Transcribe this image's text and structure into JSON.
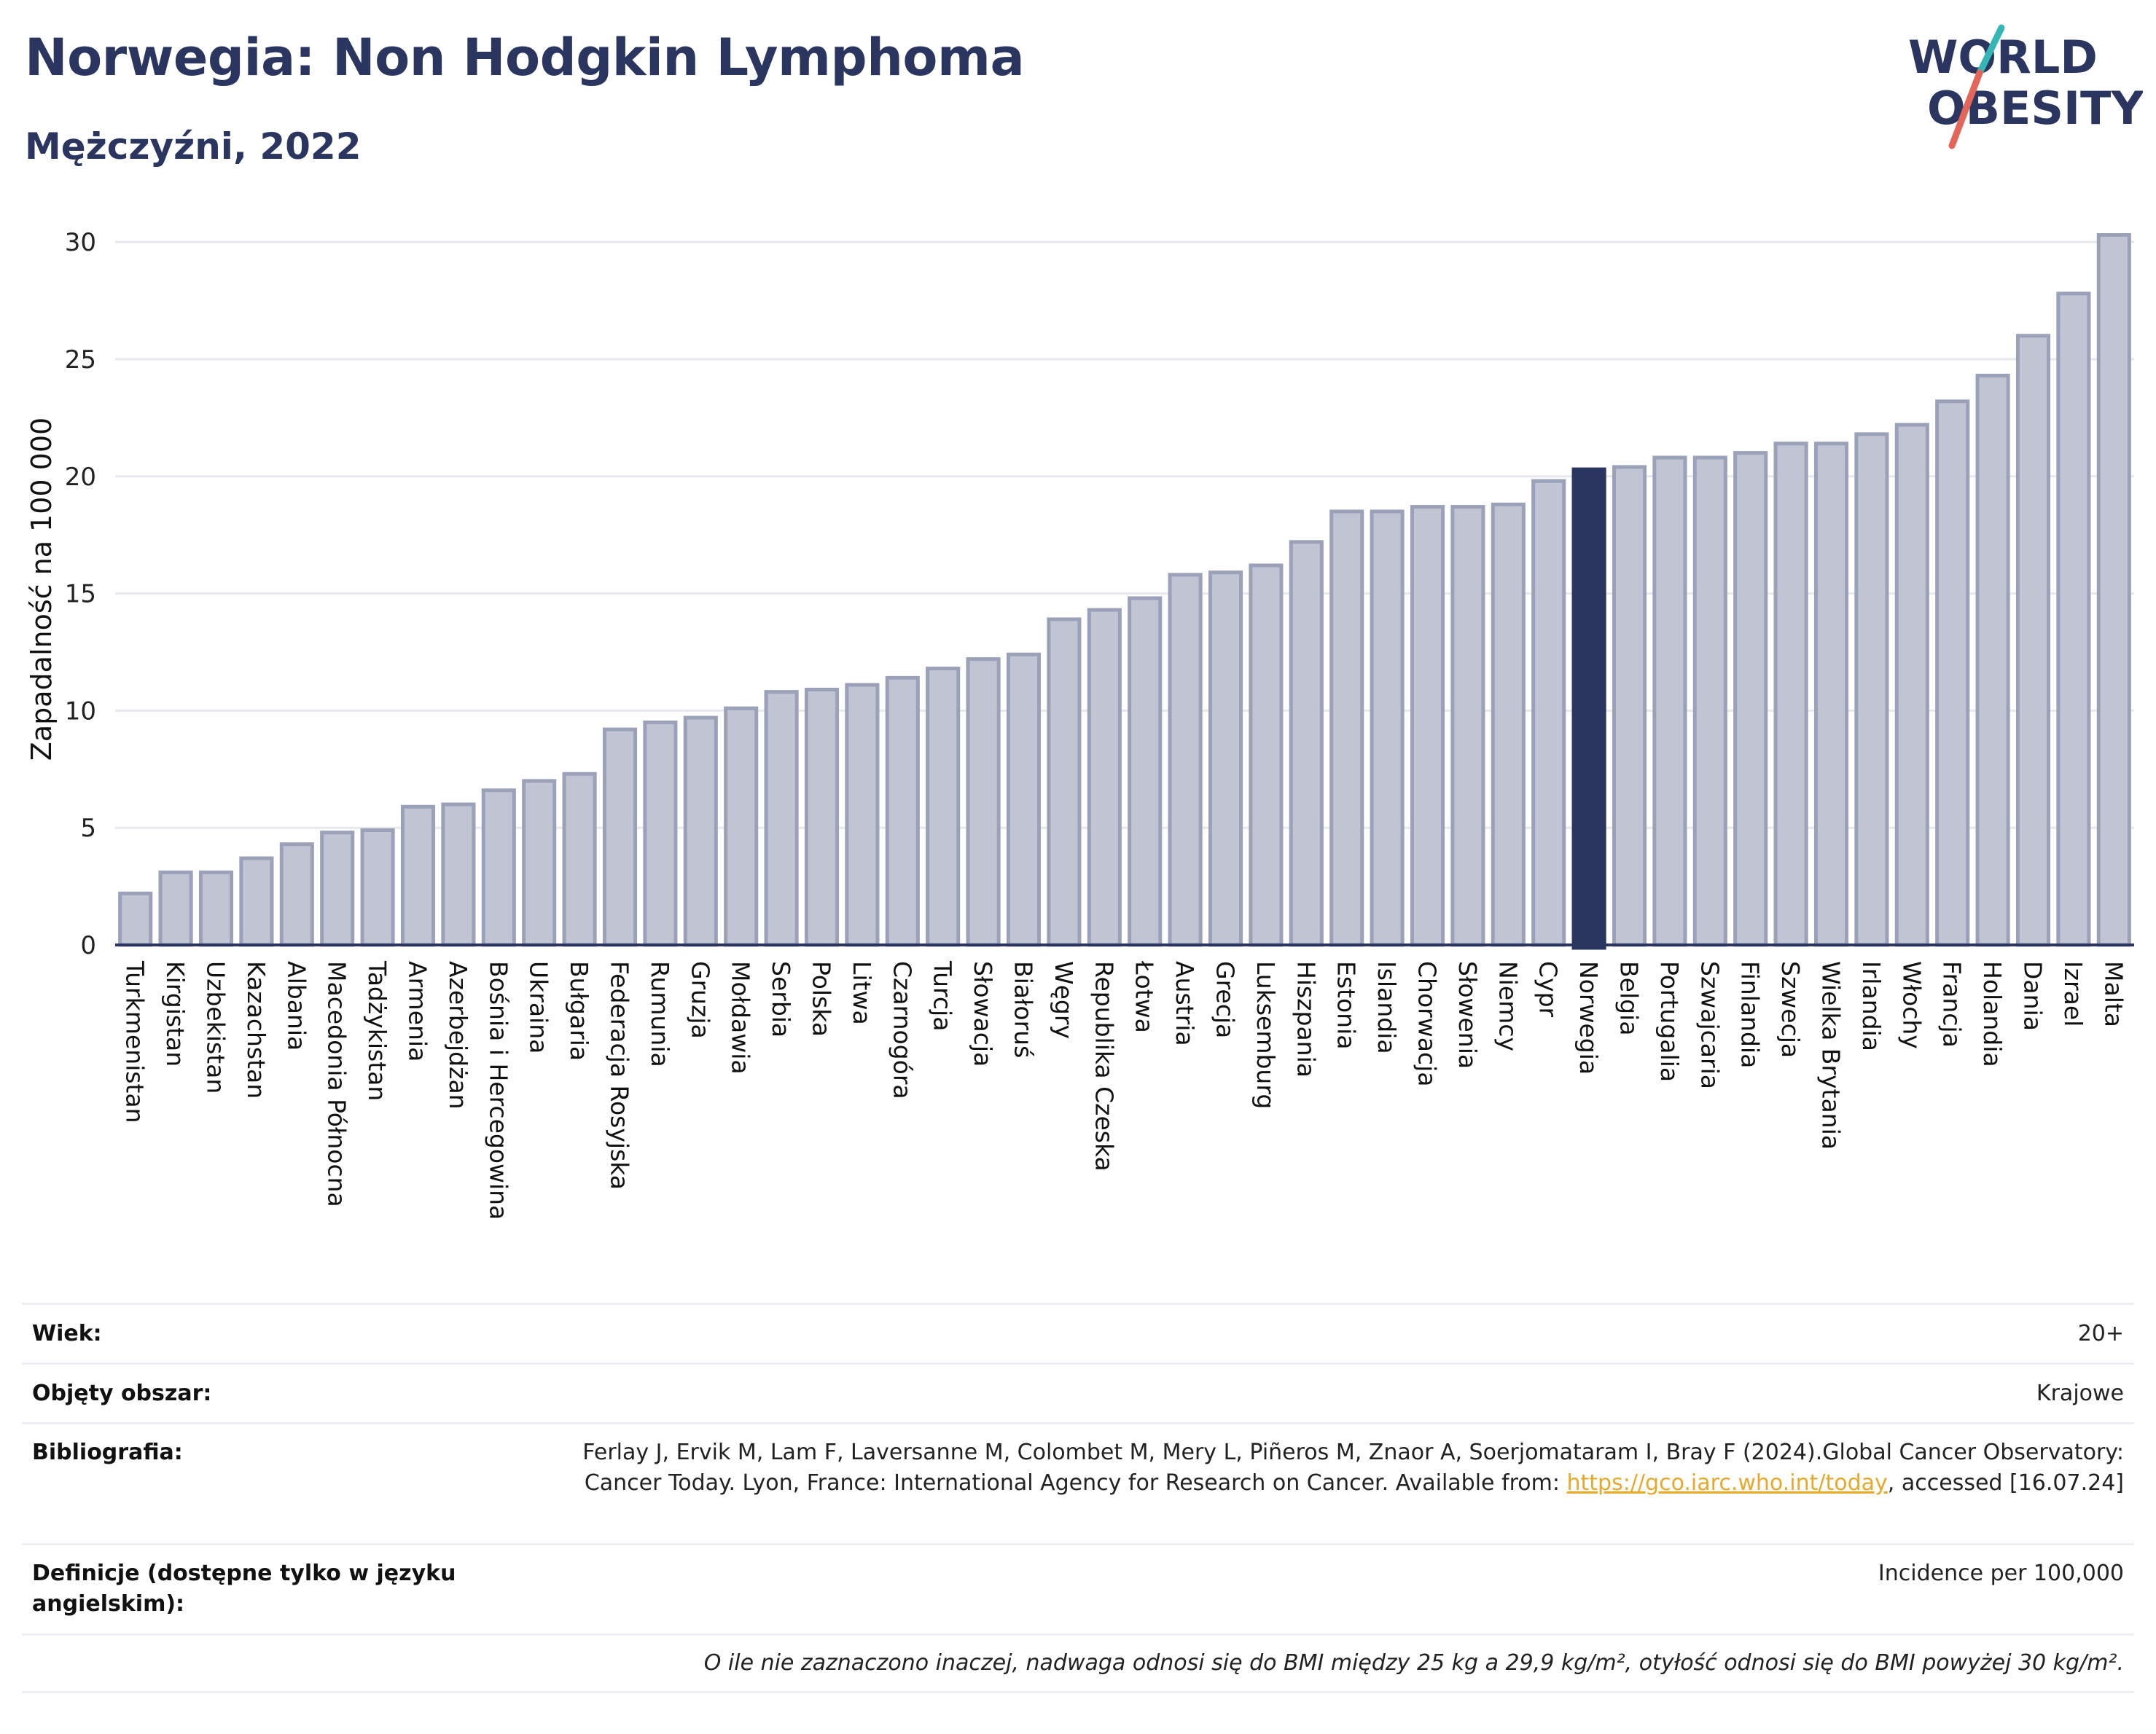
{
  "header": {
    "title": "Norwegia: Non Hodgkin Lymphoma",
    "subtitle": "Mężczyźni, 2022",
    "logo_line1": "WORLD",
    "logo_line2": "OBESITY"
  },
  "colors": {
    "bar": "#c0c4d3",
    "bar_border": "#9aa1b8",
    "highlight": "#2a3560",
    "title": "#2a3560",
    "grid": "#e6e8ee"
  },
  "chart_data": {
    "type": "bar",
    "title": "Norwegia: Non Hodgkin Lymphoma",
    "subtitle": "Mężczyźni, 2022",
    "ylabel": "Zapadalność na 100 000",
    "xlabel": "",
    "ylim": [
      0,
      31
    ],
    "yticks": [
      0,
      5,
      10,
      15,
      20,
      25,
      30
    ],
    "grid": true,
    "highlight": "Norwegia",
    "categories": [
      "Turkmenistan",
      "Kirgistan",
      "Uzbekistan",
      "Kazachstan",
      "Albania",
      "Macedonia Północna",
      "Tadżykistan",
      "Armenia",
      "Azerbejdżan",
      "Bośnia i Hercegowina",
      "Ukraina",
      "Bułgaria",
      "Federacja Rosyjska",
      "Rumunia",
      "Gruzja",
      "Mołdawia",
      "Serbia",
      "Polska",
      "Litwa",
      "Czarnogóra",
      "Turcja",
      "Słowacja",
      "Białoruś",
      "Węgry",
      "Republika Czeska",
      "Łotwa",
      "Austria",
      "Grecja",
      "Luksemburg",
      "Hiszpania",
      "Estonia",
      "Islandia",
      "Chorwacja",
      "Słowenia",
      "Niemcy",
      "Cypr",
      "Norwegia",
      "Belgia",
      "Portugalia",
      "Szwajcaria",
      "Finlandia",
      "Szwecja",
      "Wielka Brytania",
      "Irlandia",
      "Włochy",
      "Francja",
      "Holandia",
      "Dania",
      "Izrael",
      "Malta"
    ],
    "values": [
      2.2,
      3.1,
      3.1,
      3.7,
      4.3,
      4.8,
      4.9,
      5.9,
      6.0,
      6.6,
      7.0,
      7.3,
      9.2,
      9.5,
      9.7,
      10.1,
      10.8,
      10.9,
      11.1,
      11.4,
      11.8,
      12.2,
      12.4,
      13.9,
      14.3,
      14.8,
      15.8,
      15.9,
      16.2,
      17.2,
      18.5,
      18.5,
      18.7,
      18.7,
      18.8,
      19.8,
      20.3,
      20.4,
      20.8,
      20.8,
      21.0,
      21.4,
      21.4,
      21.8,
      22.2,
      23.2,
      24.3,
      26.0,
      27.8,
      30.3
    ]
  },
  "meta": {
    "age_label": "Wiek:",
    "age_value": "20+",
    "coverage_label": "Objęty obszar:",
    "coverage_value": "Krajowe",
    "biblio_label": "Bibliografia:",
    "biblio_text_1": "Ferlay J, Ervik M, Lam F, Laversanne M, Colombet M, Mery L, Piñeros M, Znaor A, Soerjomataram I, Bray F (2024).Global Cancer Observatory: Cancer Today. Lyon, France: International Agency for Research on Cancer. Available from: ",
    "biblio_link": "https://gco.iarc.who.int/today",
    "biblio_text_2": ", accessed [16.07.24]",
    "definitions_label": "Definicje (dostępne tylko w języku angielskim):",
    "definitions_value": "Incidence per 100,000",
    "footnote": "O ile nie zaznaczono inaczej, nadwaga odnosi się do BMI między 25 kg a 29,9 kg/m², otyłość odnosi się do BMI powyżej 30 kg/m²."
  }
}
